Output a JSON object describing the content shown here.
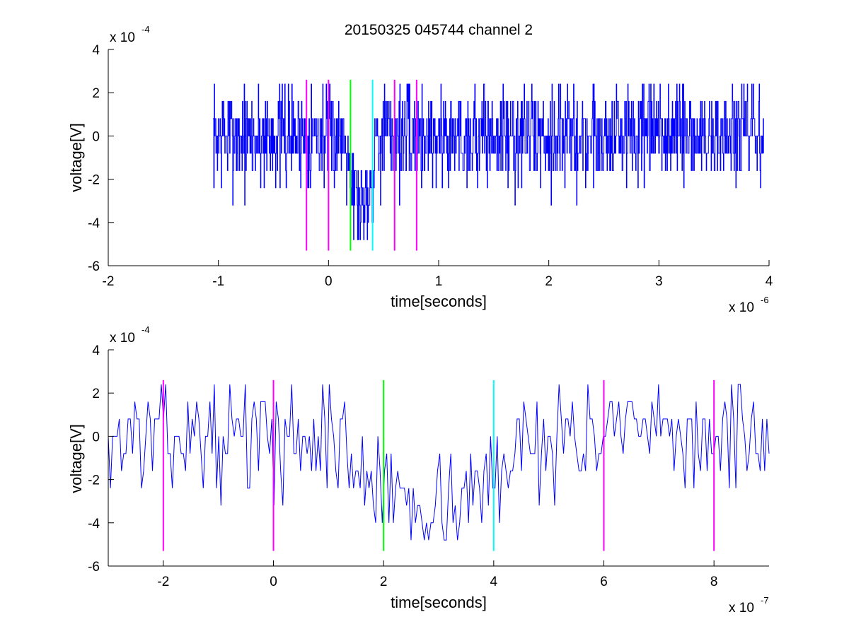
{
  "figure_title": "20150325 045744 channel 2",
  "chart_data": [
    {
      "type": "line",
      "title": "20150325 045744 channel 2",
      "xlabel": "time[seconds]",
      "ylabel": "voltage[V]",
      "x_multiplier_label": "x 10",
      "x_multiplier_exp": "-6",
      "y_multiplier_label": "x 10",
      "y_multiplier_exp": "-4",
      "xlim": [
        -2,
        4
      ],
      "ylim": [
        -6,
        4
      ],
      "xticks": [
        "-2",
        "-1",
        "0",
        "1",
        "2",
        "3",
        "4"
      ],
      "yticks": [
        "-6",
        "-4",
        "-2",
        "0",
        "2",
        "4"
      ],
      "grid": false,
      "series": [
        {
          "color": "#0000ff",
          "x_start": -1.05,
          "x_end": 3.95,
          "quantum": 0.8,
          "points": 1250,
          "noise_seed": 7,
          "dip_start": 0.2,
          "dip_end": 0.4,
          "dip_level": -3.0,
          "min": -4.8,
          "max": 2.4
        }
      ],
      "vlines": [
        {
          "x": -0.2,
          "color": "#ff00ff",
          "y0": -5.3,
          "y1": 2.6
        },
        {
          "x": 0.0,
          "color": "#ff00ff",
          "y0": -5.3,
          "y1": 2.6
        },
        {
          "x": 0.2,
          "color": "#00ff00",
          "y0": -5.3,
          "y1": 2.6
        },
        {
          "x": 0.4,
          "color": "#00ffff",
          "y0": -5.3,
          "y1": 2.6
        },
        {
          "x": 0.6,
          "color": "#ff00ff",
          "y0": -5.3,
          "y1": 2.6
        },
        {
          "x": 0.8,
          "color": "#ff00ff",
          "y0": -5.3,
          "y1": 2.6
        }
      ]
    },
    {
      "type": "line",
      "title": "",
      "xlabel": "time[seconds]",
      "ylabel": "voltage[V]",
      "x_multiplier_label": "x 10",
      "x_multiplier_exp": "-7",
      "y_multiplier_label": "x 10",
      "y_multiplier_exp": "-4",
      "xlim": [
        -3,
        9
      ],
      "ylim": [
        -6,
        4
      ],
      "xticks": [
        "-2",
        "0",
        "2",
        "4",
        "6",
        "8"
      ],
      "yticks": [
        "-6",
        "-4",
        "-2",
        "0",
        "2",
        "4"
      ],
      "grid": false,
      "series": [
        {
          "color": "#0000ff",
          "x_start": -3,
          "x_end": 9,
          "quantum": 0.8,
          "points": 300,
          "noise_seed": 13,
          "dip_start": 1.5,
          "dip_end": 4.2,
          "dip_level": -3.0,
          "min": -4.8,
          "max": 2.4
        }
      ],
      "vlines": [
        {
          "x": -2,
          "color": "#ff00ff",
          "y0": -5.3,
          "y1": 2.6
        },
        {
          "x": 0,
          "color": "#ff00ff",
          "y0": -5.3,
          "y1": 2.6
        },
        {
          "x": 2,
          "color": "#00ff00",
          "y0": -5.3,
          "y1": 2.6
        },
        {
          "x": 4,
          "color": "#00ffff",
          "y0": -5.3,
          "y1": 2.6
        },
        {
          "x": 6,
          "color": "#ff00ff",
          "y0": -5.3,
          "y1": 2.6
        },
        {
          "x": 8,
          "color": "#ff00ff",
          "y0": -5.3,
          "y1": 2.6
        }
      ]
    }
  ]
}
